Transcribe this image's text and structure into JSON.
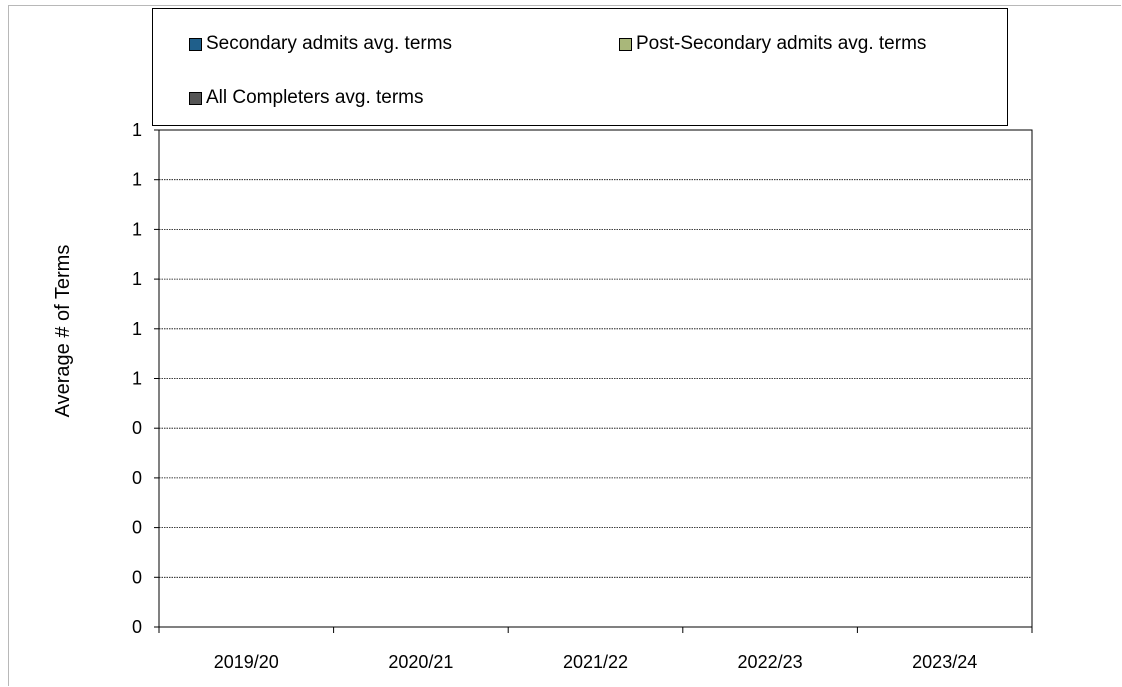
{
  "chart_data": {
    "type": "bar",
    "title": "",
    "xlabel": "",
    "ylabel": "Average # of Terms",
    "categories": [
      "2019/20",
      "2020/21",
      "2021/22",
      "2022/23",
      "2023/24"
    ],
    "y_tick_labels": [
      "0",
      "0",
      "0",
      "0",
      "0",
      "1",
      "1",
      "1",
      "1",
      "1",
      "1"
    ],
    "ylim": [
      0,
      1
    ],
    "grid": true,
    "legend_position": "top",
    "series": [
      {
        "name": "Secondary admits avg. terms",
        "color": "#1f5f8b",
        "values": [
          null,
          null,
          null,
          null,
          null
        ]
      },
      {
        "name": "Post-Secondary admits avg. terms",
        "color": "#a9b77a",
        "values": [
          null,
          null,
          null,
          null,
          null
        ]
      },
      {
        "name": "All Completers avg. terms",
        "color": "#555555",
        "values": [
          null,
          null,
          null,
          null,
          null
        ]
      }
    ]
  }
}
